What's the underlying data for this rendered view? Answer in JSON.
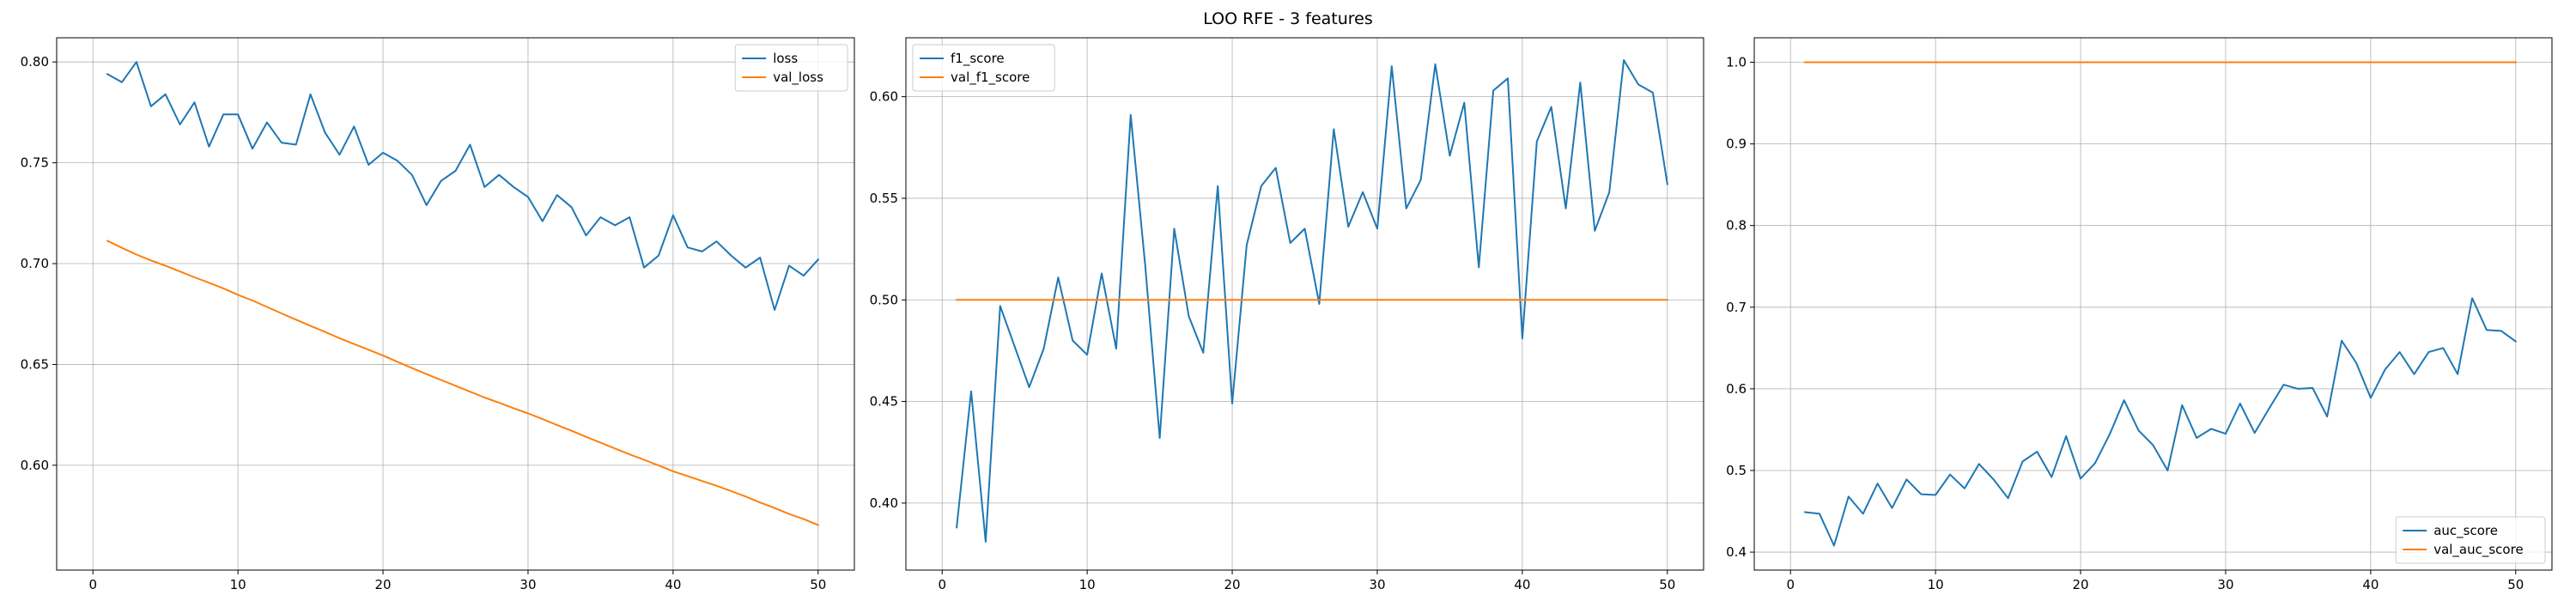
{
  "figure": {
    "title": "LOO RFE - 3 features"
  },
  "chart_data": [
    {
      "type": "line",
      "title": "",
      "xlabel": "",
      "ylabel": "",
      "xlim": [
        -2.5,
        52.5
      ],
      "ylim": [
        0.548,
        0.812
      ],
      "xticks": [
        0,
        10,
        20,
        30,
        40,
        50
      ],
      "yticks": [
        0.6,
        0.65,
        0.7,
        0.75,
        0.8
      ],
      "ytick_labels": [
        "0.60",
        "0.65",
        "0.70",
        "0.75",
        "0.80"
      ],
      "grid": true,
      "legend_loc": "upper right",
      "x": [
        1,
        2,
        3,
        4,
        5,
        6,
        7,
        8,
        9,
        10,
        11,
        12,
        13,
        14,
        15,
        16,
        17,
        18,
        19,
        20,
        21,
        22,
        23,
        24,
        25,
        26,
        27,
        28,
        29,
        30,
        31,
        32,
        33,
        34,
        35,
        36,
        37,
        38,
        39,
        40,
        41,
        42,
        43,
        44,
        45,
        46,
        47,
        48,
        49,
        50
      ],
      "series": [
        {
          "name": "loss",
          "color": "#1f77b4",
          "values": [
            0.794,
            0.79,
            0.8,
            0.778,
            0.784,
            0.769,
            0.78,
            0.758,
            0.774,
            0.774,
            0.757,
            0.77,
            0.76,
            0.759,
            0.784,
            0.765,
            0.754,
            0.768,
            0.749,
            0.755,
            0.751,
            0.744,
            0.729,
            0.741,
            0.746,
            0.759,
            0.738,
            0.744,
            0.738,
            0.733,
            0.721,
            0.734,
            0.728,
            0.714,
            0.723,
            0.719,
            0.723,
            0.698,
            0.704,
            0.724,
            0.708,
            0.706,
            0.711,
            0.704,
            0.698,
            0.703,
            0.677,
            0.699,
            0.694,
            0.702
          ]
        },
        {
          "name": "val_loss",
          "color": "#ff7f0e",
          "values": [
            0.7113,
            0.7078,
            0.7045,
            0.7016,
            0.6989,
            0.6961,
            0.6932,
            0.6905,
            0.6877,
            0.6845,
            0.6817,
            0.6785,
            0.6753,
            0.6722,
            0.6691,
            0.6661,
            0.663,
            0.6601,
            0.6573,
            0.6544,
            0.6513,
            0.6482,
            0.6452,
            0.6423,
            0.6394,
            0.6365,
            0.6336,
            0.631,
            0.6283,
            0.6257,
            0.6229,
            0.6199,
            0.6171,
            0.6141,
            0.6112,
            0.6083,
            0.6054,
            0.6027,
            0.5999,
            0.597,
            0.5946,
            0.5922,
            0.5898,
            0.5872,
            0.5845,
            0.5815,
            0.5788,
            0.5758,
            0.5733,
            0.5703
          ]
        }
      ]
    },
    {
      "type": "line",
      "title": "",
      "xlabel": "",
      "ylabel": "",
      "xlim": [
        -2.5,
        52.5
      ],
      "ylim": [
        0.367,
        0.629
      ],
      "xticks": [
        0,
        10,
        20,
        30,
        40,
        50
      ],
      "yticks": [
        0.4,
        0.45,
        0.5,
        0.55,
        0.6
      ],
      "ytick_labels": [
        "0.40",
        "0.45",
        "0.50",
        "0.55",
        "0.60"
      ],
      "grid": true,
      "legend_loc": "upper left",
      "x": [
        1,
        2,
        3,
        4,
        5,
        6,
        7,
        8,
        9,
        10,
        11,
        12,
        13,
        14,
        15,
        16,
        17,
        18,
        19,
        20,
        21,
        22,
        23,
        24,
        25,
        26,
        27,
        28,
        29,
        30,
        31,
        32,
        33,
        34,
        35,
        36,
        37,
        38,
        39,
        40,
        41,
        42,
        43,
        44,
        45,
        46,
        47,
        48,
        49,
        50
      ],
      "series": [
        {
          "name": "f1_score",
          "color": "#1f77b4",
          "values": [
            0.388,
            0.455,
            0.381,
            0.497,
            0.477,
            0.457,
            0.476,
            0.511,
            0.48,
            0.473,
            0.513,
            0.476,
            0.591,
            0.517,
            0.432,
            0.535,
            0.492,
            0.474,
            0.556,
            0.449,
            0.527,
            0.556,
            0.565,
            0.528,
            0.535,
            0.498,
            0.584,
            0.536,
            0.553,
            0.535,
            0.615,
            0.545,
            0.559,
            0.616,
            0.571,
            0.597,
            0.516,
            0.603,
            0.609,
            0.481,
            0.578,
            0.595,
            0.545,
            0.607,
            0.534,
            0.553,
            0.618,
            0.606,
            0.602,
            0.557
          ]
        },
        {
          "name": "val_f1_score",
          "color": "#ff7f0e",
          "values": [
            0.5,
            0.5,
            0.5,
            0.5,
            0.5,
            0.5,
            0.5,
            0.5,
            0.5,
            0.5,
            0.5,
            0.5,
            0.5,
            0.5,
            0.5,
            0.5,
            0.5,
            0.5,
            0.5,
            0.5,
            0.5,
            0.5,
            0.5,
            0.5,
            0.5,
            0.5,
            0.5,
            0.5,
            0.5,
            0.5,
            0.5,
            0.5,
            0.5,
            0.5,
            0.5,
            0.5,
            0.5,
            0.5,
            0.5,
            0.5,
            0.5,
            0.5,
            0.5,
            0.5,
            0.5,
            0.5,
            0.5,
            0.5,
            0.5,
            0.5
          ]
        }
      ]
    },
    {
      "type": "line",
      "title": "",
      "xlabel": "",
      "ylabel": "",
      "xlim": [
        -2.5,
        52.5
      ],
      "ylim": [
        0.378,
        1.03
      ],
      "xticks": [
        0,
        10,
        20,
        30,
        40,
        50
      ],
      "yticks": [
        0.4,
        0.5,
        0.6,
        0.7,
        0.8,
        0.9,
        1.0
      ],
      "ytick_labels": [
        "0.4",
        "0.5",
        "0.6",
        "0.7",
        "0.8",
        "0.9",
        "1.0"
      ],
      "grid": true,
      "legend_loc": "lower right",
      "x": [
        1,
        2,
        3,
        4,
        5,
        6,
        7,
        8,
        9,
        10,
        11,
        12,
        13,
        14,
        15,
        16,
        17,
        18,
        19,
        20,
        21,
        22,
        23,
        24,
        25,
        26,
        27,
        28,
        29,
        30,
        31,
        32,
        33,
        34,
        35,
        36,
        37,
        38,
        39,
        40,
        41,
        42,
        43,
        44,
        45,
        46,
        47,
        48,
        49,
        50
      ],
      "series": [
        {
          "name": "auc_score",
          "color": "#1f77b4",
          "values": [
            0.449,
            0.447,
            0.408,
            0.468,
            0.447,
            0.484,
            0.454,
            0.489,
            0.471,
            0.47,
            0.495,
            0.478,
            0.508,
            0.489,
            0.466,
            0.511,
            0.523,
            0.492,
            0.542,
            0.49,
            0.509,
            0.544,
            0.586,
            0.549,
            0.531,
            0.5,
            0.58,
            0.54,
            0.551,
            0.545,
            0.582,
            0.546,
            0.576,
            0.605,
            0.6,
            0.601,
            0.566,
            0.659,
            0.632,
            0.589,
            0.624,
            0.645,
            0.618,
            0.645,
            0.65,
            0.618,
            0.711,
            0.672,
            0.671,
            0.658
          ]
        },
        {
          "name": "val_auc_score",
          "color": "#ff7f0e",
          "values": [
            1.0,
            1.0,
            1.0,
            1.0,
            1.0,
            1.0,
            1.0,
            1.0,
            1.0,
            1.0,
            1.0,
            1.0,
            1.0,
            1.0,
            1.0,
            1.0,
            1.0,
            1.0,
            1.0,
            1.0,
            1.0,
            1.0,
            1.0,
            1.0,
            1.0,
            1.0,
            1.0,
            1.0,
            1.0,
            1.0,
            1.0,
            1.0,
            1.0,
            1.0,
            1.0,
            1.0,
            1.0,
            1.0,
            1.0,
            1.0,
            1.0,
            1.0,
            1.0,
            1.0,
            1.0,
            1.0,
            1.0,
            1.0,
            1.0,
            1.0
          ]
        }
      ]
    }
  ]
}
